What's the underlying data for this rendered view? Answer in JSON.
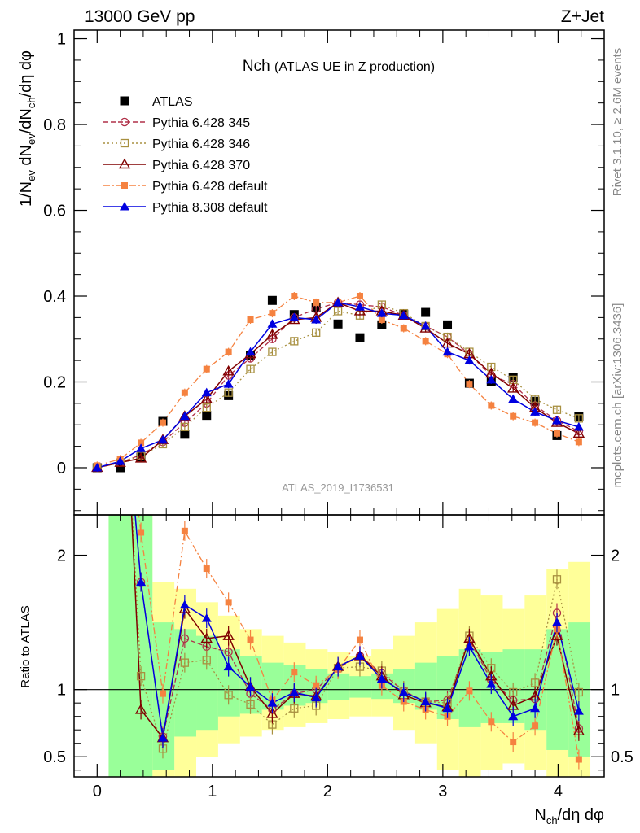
{
  "header": {
    "energy": "13000 GeV pp",
    "process": "Z+Jet",
    "title_main": "Nch",
    "title_sub": "(ATLAS UE in Z production)",
    "analysis_id": "ATLAS_2019_I1736531",
    "side_rivet": "Rivet 3.1.10, ≥ 2.6M events",
    "side_site": "mcplots.cern.ch [arXiv:1306.3436]"
  },
  "colors": {
    "data": "#000000",
    "p345": "#b03048",
    "p346": "#a89040",
    "p370": "#800000",
    "p6def": "#f58240",
    "p8def": "#0000e0",
    "band_green": "#99ff99",
    "band_yellow": "#ffff99"
  },
  "chart_data": [
    {
      "type": "scatter",
      "panel": "main",
      "ylabel": "1/N_ev dN_ev/dN_ch/dη dφ",
      "xlabel": "N_ch/dη dφ",
      "xlim": [
        -0.2,
        4.4
      ],
      "ylim": [
        -0.11,
        1.02
      ],
      "yticks": [
        "0",
        "0.2",
        "0.4",
        "0.6",
        "0.8",
        "1"
      ],
      "xticks": [
        "0",
        "1",
        "2",
        "3",
        "4"
      ],
      "x": [
        0.0,
        0.2,
        0.38,
        0.57,
        0.76,
        0.95,
        1.14,
        1.33,
        1.52,
        1.71,
        1.9,
        2.09,
        2.28,
        2.47,
        2.66,
        2.85,
        3.04,
        3.23,
        3.42,
        3.61,
        3.8,
        3.99,
        4.18
      ],
      "series": [
        {
          "name": "ATLAS",
          "key": "data",
          "marker": "filled-square",
          "line": "none",
          "values": [
            0.0,
            0.0,
            0.025,
            0.108,
            0.078,
            0.122,
            0.168,
            0.262,
            0.39,
            0.357,
            0.373,
            0.335,
            0.303,
            0.333,
            0.358,
            0.362,
            0.333,
            0.197,
            0.2,
            0.21,
            0.155,
            0.075,
            0.12
          ]
        },
        {
          "name": "Pythia 6.428 345",
          "key": "p345",
          "marker": "open-circle",
          "line": "dashed",
          "values": [
            0.0,
            0.012,
            0.03,
            0.06,
            0.105,
            0.15,
            0.215,
            0.255,
            0.3,
            0.35,
            0.37,
            0.385,
            0.38,
            0.375,
            0.355,
            0.33,
            0.305,
            0.265,
            0.215,
            0.195,
            0.145,
            0.11,
            0.085
          ]
        },
        {
          "name": "Pythia 6.428 346",
          "key": "p346",
          "marker": "open-square",
          "line": "dotted",
          "values": [
            0.0,
            0.012,
            0.028,
            0.055,
            0.095,
            0.14,
            0.175,
            0.23,
            0.27,
            0.295,
            0.315,
            0.365,
            0.355,
            0.38,
            0.36,
            0.33,
            0.305,
            0.27,
            0.235,
            0.205,
            0.16,
            0.135,
            0.115
          ]
        },
        {
          "name": "Pythia 6.428 370",
          "key": "p370",
          "marker": "open-triangle",
          "line": "solid",
          "values": [
            0.0,
            0.012,
            0.022,
            0.065,
            0.12,
            0.16,
            0.225,
            0.265,
            0.31,
            0.345,
            0.35,
            0.385,
            0.365,
            0.365,
            0.355,
            0.325,
            0.29,
            0.265,
            0.22,
            0.185,
            0.14,
            0.105,
            0.08
          ]
        },
        {
          "name": "Pythia 6.428 default",
          "key": "p6def",
          "marker": "filled-square-small",
          "line": "dashdot",
          "values": [
            0.005,
            0.02,
            0.058,
            0.105,
            0.175,
            0.23,
            0.27,
            0.345,
            0.36,
            0.4,
            0.385,
            0.385,
            0.4,
            0.345,
            0.325,
            0.295,
            0.265,
            0.195,
            0.145,
            0.12,
            0.105,
            0.08,
            0.06
          ]
        },
        {
          "name": "Pythia 8.308 default",
          "key": "p8def",
          "marker": "filled-triangle",
          "line": "solid",
          "values": [
            0.0,
            0.015,
            0.045,
            0.065,
            0.12,
            0.175,
            0.195,
            0.27,
            0.335,
            0.35,
            0.345,
            0.385,
            0.375,
            0.36,
            0.355,
            0.33,
            0.27,
            0.25,
            0.205,
            0.16,
            0.13,
            0.11,
            0.095
          ]
        }
      ]
    },
    {
      "type": "scatter",
      "panel": "ratio",
      "ylabel": "Ratio to ATLAS",
      "xlim": [
        -0.2,
        4.4
      ],
      "ylim": [
        0.35,
        2.3
      ],
      "yticks": [
        "0.5",
        "1",
        "2"
      ],
      "reference_line": 1.0,
      "bands": {
        "edges": [
          0.1,
          0.48,
          0.67,
          0.86,
          1.05,
          1.24,
          1.43,
          1.62,
          1.81,
          2.0,
          2.19,
          2.38,
          2.57,
          2.76,
          2.95,
          3.14,
          3.33,
          3.52,
          3.71,
          3.9,
          4.09,
          4.28
        ],
        "green": [
          [
            0.35,
            2.3
          ],
          [
            0.4,
            1.5
          ],
          [
            0.65,
            1.45
          ],
          [
            0.7,
            1.4
          ],
          [
            0.8,
            1.3
          ],
          [
            0.82,
            1.25
          ],
          [
            0.85,
            1.2
          ],
          [
            0.88,
            1.18
          ],
          [
            0.9,
            1.15
          ],
          [
            0.92,
            1.12
          ],
          [
            0.94,
            1.1
          ],
          [
            0.93,
            1.12
          ],
          [
            0.9,
            1.15
          ],
          [
            0.85,
            1.2
          ],
          [
            0.78,
            1.25
          ],
          [
            0.72,
            1.3
          ],
          [
            0.75,
            1.28
          ],
          [
            0.75,
            1.3
          ],
          [
            0.7,
            1.3
          ],
          [
            0.55,
            1.45
          ],
          [
            0.5,
            1.5
          ]
        ],
        "yellow": [
          [
            0.35,
            2.3
          ],
          [
            0.35,
            1.8
          ],
          [
            0.35,
            1.75
          ],
          [
            0.5,
            1.65
          ],
          [
            0.6,
            1.55
          ],
          [
            0.65,
            1.45
          ],
          [
            0.7,
            1.4
          ],
          [
            0.72,
            1.35
          ],
          [
            0.75,
            1.3
          ],
          [
            0.78,
            1.28
          ],
          [
            0.8,
            1.25
          ],
          [
            0.8,
            1.3
          ],
          [
            0.7,
            1.4
          ],
          [
            0.6,
            1.5
          ],
          [
            0.4,
            1.6
          ],
          [
            0.35,
            1.75
          ],
          [
            0.4,
            1.7
          ],
          [
            0.45,
            1.6
          ],
          [
            0.4,
            1.7
          ],
          [
            0.35,
            1.9
          ],
          [
            0.35,
            1.95
          ]
        ]
      },
      "x": [
        0.38,
        0.57,
        0.76,
        0.95,
        1.14,
        1.33,
        1.52,
        1.71,
        1.9,
        2.09,
        2.28,
        2.47,
        2.66,
        2.85,
        3.04,
        3.23,
        3.42,
        3.61,
        3.8,
        3.99,
        4.18
      ],
      "series": [
        {
          "name": "Pythia 6.428 345",
          "key": "p345",
          "values": [
            1.8,
            0.65,
            1.38,
            1.32,
            1.28,
            0.97,
            0.85,
            0.97,
            1.0,
            1.16,
            1.25,
            1.12,
            0.99,
            0.91,
            0.92,
            1.37,
            1.07,
            0.92,
            0.93,
            1.57,
            0.71
          ]
        },
        {
          "name": "Pythia 6.428 346",
          "key": "p346",
          "values": [
            1.1,
            0.56,
            1.2,
            1.22,
            0.96,
            0.89,
            0.74,
            0.86,
            0.88,
            1.16,
            1.17,
            1.14,
            0.99,
            0.91,
            0.9,
            1.4,
            1.16,
            0.98,
            1.05,
            1.82,
            0.98
          ]
        },
        {
          "name": "Pythia 6.428 370",
          "key": "p370",
          "values": [
            0.85,
            0.64,
            1.6,
            1.38,
            1.4,
            1.02,
            0.82,
            0.97,
            0.95,
            1.17,
            1.25,
            1.1,
            0.96,
            0.9,
            0.87,
            1.38,
            1.1,
            0.88,
            0.95,
            1.4,
            0.69
          ]
        },
        {
          "name": "Pythia 6.428 default",
          "key": "p6def",
          "values": [
            2.17,
            0.97,
            2.18,
            1.9,
            1.65,
            1.37,
            0.92,
            1.13,
            1.03,
            1.15,
            1.37,
            1.03,
            0.91,
            0.85,
            0.8,
            0.99,
            0.76,
            0.61,
            0.73,
            1.45,
            0.48
          ]
        },
        {
          "name": "Pythia 8.308 default",
          "key": "p8def",
          "values": [
            1.8,
            0.64,
            1.63,
            1.53,
            1.17,
            1.02,
            0.9,
            0.98,
            0.94,
            1.17,
            1.25,
            1.08,
            0.98,
            0.91,
            0.86,
            1.32,
            1.04,
            0.8,
            0.86,
            1.5,
            0.84
          ]
        }
      ]
    }
  ]
}
